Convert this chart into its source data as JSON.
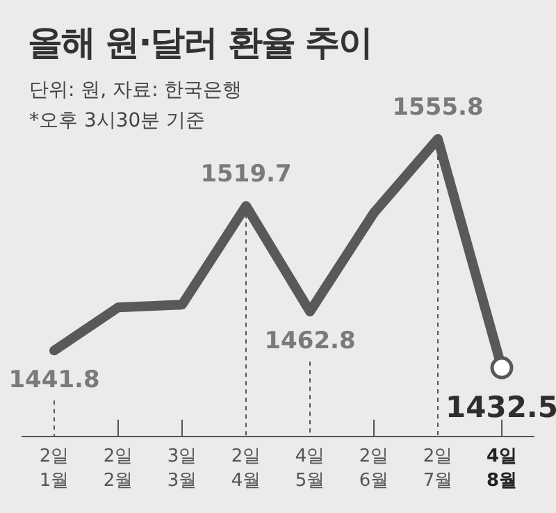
{
  "chart_data": {
    "type": "line",
    "title": "올해 원·달러 환율 추이",
    "subtitle": "단위: 원, 자료: 한국은행",
    "annotations": [
      "*오후 3시30분 기준"
    ],
    "categories": [
      "2일\n1월",
      "2일\n2월",
      "3일\n3월",
      "2일\n4월",
      "4일\n5월",
      "2일\n6월",
      "2일\n7월",
      "4일\n8월"
    ],
    "series": [
      {
        "color": "#595959",
        "values": [
          1441.8,
          1465,
          1466.5,
          1519.7,
          1462.8,
          1516,
          1555.8,
          1432.5
        ],
        "value_labels": [
          "1441.8",
          null,
          null,
          "1519.7",
          "1462.8",
          null,
          "1555.8",
          "1432.5"
        ]
      }
    ],
    "grid": "x",
    "legend": false
  }
}
